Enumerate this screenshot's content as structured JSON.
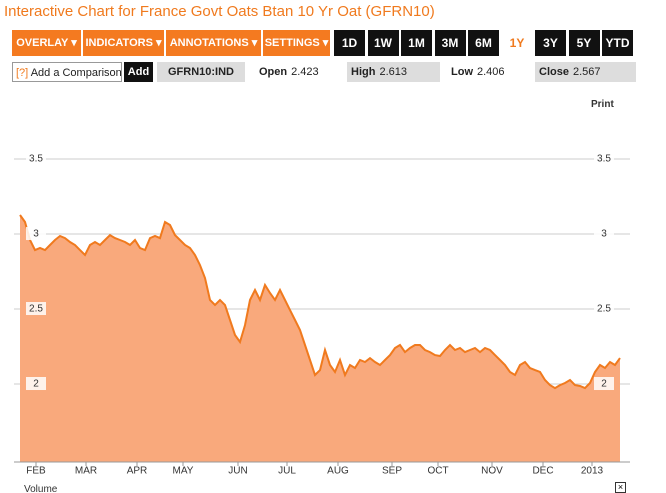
{
  "header": {
    "title": "Interactive Chart for France Govt Oats Btan 10 Yr Oat (GFRN10)"
  },
  "toolbar": {
    "menus": [
      "OVERLAY ▾",
      "INDICATORS ▾",
      "ANNOTATIONS ▾",
      "SETTINGS ▾"
    ],
    "ranges": [
      "1D",
      "1W",
      "1M",
      "3M",
      "6M",
      "1Y",
      "3Y",
      "5Y",
      "YTD"
    ]
  },
  "quote_bar": {
    "help": "[?]",
    "comparison": "Add a Comparison",
    "add": "Add",
    "ticker": "GFRN10:IND",
    "quotes": [
      {
        "label": "Open",
        "value": "2.423"
      },
      {
        "label": "High",
        "value": "2.613"
      },
      {
        "label": "Low",
        "value": "2.406"
      },
      {
        "label": "Close",
        "value": "2.567"
      }
    ]
  },
  "print": "Print",
  "volume": "Volume",
  "chart_data": {
    "type": "area",
    "series": [
      {
        "name": "GFRN10",
        "color": "#f07a1e",
        "fill": "#f9a97c",
        "values": [
          3.127,
          3.08,
          2.96,
          2.893,
          2.907,
          2.893,
          2.927,
          2.96,
          2.987,
          2.973,
          2.947,
          2.927,
          2.893,
          2.86,
          2.927,
          2.947,
          2.927,
          2.96,
          2.993,
          2.973,
          2.96,
          2.947,
          2.927,
          2.96,
          2.907,
          2.893,
          2.973,
          2.987,
          2.973,
          3.08,
          3.06,
          2.993,
          2.96,
          2.927,
          2.907,
          2.86,
          2.793,
          2.707,
          2.56,
          2.527,
          2.56,
          2.527,
          2.427,
          2.327,
          2.28,
          2.393,
          2.56,
          2.627,
          2.56,
          2.66,
          2.607,
          2.56,
          2.627,
          2.56,
          2.493,
          2.427,
          2.36,
          2.26,
          2.16,
          2.06,
          2.093,
          2.227,
          2.127,
          2.08,
          2.16,
          2.06,
          2.127,
          2.107,
          2.16,
          2.147,
          2.173,
          2.147,
          2.127,
          2.16,
          2.193,
          2.24,
          2.26,
          2.213,
          2.24,
          2.26,
          2.26,
          2.227,
          2.213,
          2.193,
          2.187,
          2.227,
          2.26,
          2.227,
          2.24,
          2.213,
          2.227,
          2.24,
          2.213,
          2.24,
          2.227,
          2.193,
          2.16,
          2.127,
          2.08,
          2.06,
          2.127,
          2.147,
          2.107,
          2.093,
          2.08,
          2.027,
          1.993,
          1.973,
          1.993,
          2.007,
          2.027,
          1.993,
          1.987,
          1.973,
          2.007,
          2.08,
          2.127,
          2.107,
          2.147,
          2.127,
          2.173
        ]
      }
    ],
    "xlim": [
      -1.2,
      122
    ],
    "xticks": [
      {
        "value": 3.2,
        "label": "FEB"
      },
      {
        "value": 13.2,
        "label": "MAR"
      },
      {
        "value": 23.4,
        "label": "APR"
      },
      {
        "value": 32.6,
        "label": "MAY"
      },
      {
        "value": 43.6,
        "label": "JUN"
      },
      {
        "value": 53.4,
        "label": "JUL"
      },
      {
        "value": 63.6,
        "label": "AUG"
      },
      {
        "value": 74.4,
        "label": "SEP"
      },
      {
        "value": 83.6,
        "label": "OCT"
      },
      {
        "value": 94.4,
        "label": "NOV"
      },
      {
        "value": 104.6,
        "label": "DEC"
      },
      {
        "value": 114.4,
        "label": "2013"
      }
    ],
    "ylim": [
      1.48,
      3.927
    ],
    "yticks": [
      2,
      2.5,
      3,
      3.5
    ],
    "grid": true
  }
}
